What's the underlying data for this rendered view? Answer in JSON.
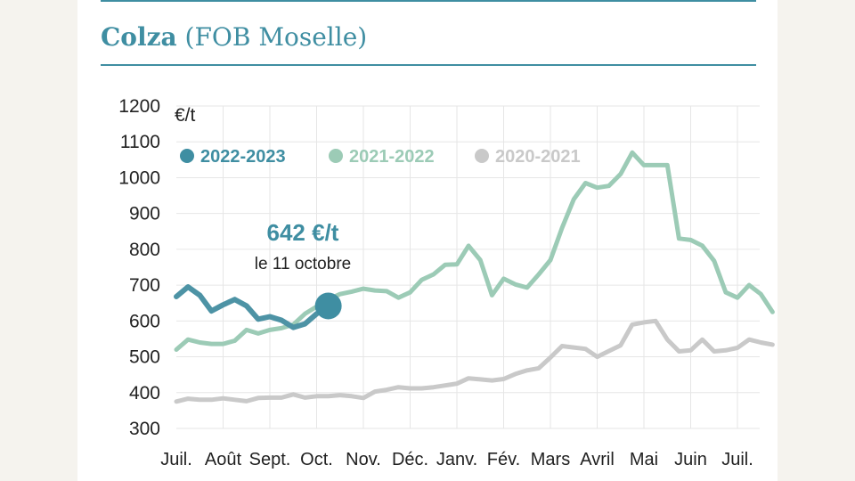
{
  "title": {
    "main": "Colza",
    "sub": "(FOB Moselle)"
  },
  "colors": {
    "s2022": "#4d93a5",
    "s2022_dot": "#3f8ea2",
    "s2021": "#9ccbb6",
    "s2020": "#c9c9c9",
    "grid": "#e6e6e6",
    "text": "#222222",
    "rule": "#3f8ea2"
  },
  "chart_data": {
    "type": "line",
    "title": "Colza (FOB Moselle)",
    "ylabel": "€/t",
    "ylim": [
      300,
      1200
    ],
    "yticks": [
      300,
      400,
      500,
      600,
      700,
      800,
      900,
      1000,
      1100,
      1200
    ],
    "xlabels": [
      "Juil.",
      "Août",
      "Sept.",
      "Oct.",
      "Nov.",
      "Déc.",
      "Janv.",
      "Fév.",
      "Mars",
      "Avril",
      "Mai",
      "Juin",
      "Juil."
    ],
    "xlim": [
      0,
      12.8
    ],
    "legend": "top-left",
    "series": [
      {
        "name": "2020-2021",
        "color": "#c9c9c9",
        "x": [
          0,
          0.25,
          0.5,
          0.75,
          1,
          1.25,
          1.5,
          1.75,
          2,
          2.25,
          2.5,
          2.75,
          3,
          3.25,
          3.5,
          3.75,
          4,
          4.25,
          4.5,
          4.75,
          5,
          5.25,
          5.5,
          5.75,
          6,
          6.25,
          6.5,
          6.75,
          7,
          7.25,
          7.5,
          7.75,
          8,
          8.25,
          8.5,
          8.75,
          9,
          9.25,
          9.5,
          9.75,
          10,
          10.25,
          10.5,
          10.75,
          11,
          11.25,
          11.5,
          11.75,
          12,
          12.25,
          12.5,
          12.75
        ],
        "values": [
          375,
          383,
          380,
          380,
          384,
          380,
          376,
          385,
          386,
          386,
          395,
          386,
          390,
          390,
          393,
          390,
          385,
          403,
          408,
          415,
          412,
          412,
          415,
          420,
          425,
          440,
          437,
          434,
          438,
          452,
          462,
          468,
          498,
          530,
          526,
          522,
          500,
          516,
          532,
          590,
          596,
          600,
          548,
          515,
          518,
          548,
          515,
          518,
          525,
          548,
          540,
          534
        ]
      },
      {
        "name": "2021-2022",
        "color": "#9ccbb6",
        "x": [
          0,
          0.25,
          0.5,
          0.75,
          1,
          1.25,
          1.5,
          1.75,
          2,
          2.25,
          2.5,
          2.75,
          3,
          3.25,
          3.5,
          3.75,
          4,
          4.25,
          4.5,
          4.75,
          5,
          5.25,
          5.5,
          5.75,
          6,
          6.25,
          6.5,
          6.75,
          7,
          7.25,
          7.5,
          7.75,
          8,
          8.25,
          8.5,
          8.75,
          9,
          9.25,
          9.5,
          9.75,
          10,
          10.25,
          10.5,
          10.75,
          11,
          11.25,
          11.5,
          11.75,
          12,
          12.25,
          12.5,
          12.75
        ],
        "values": [
          520,
          548,
          540,
          536,
          536,
          545,
          575,
          565,
          575,
          580,
          590,
          620,
          640,
          660,
          675,
          682,
          690,
          685,
          683,
          665,
          680,
          715,
          730,
          757,
          758,
          810,
          770,
          672,
          718,
          702,
          693,
          730,
          770,
          860,
          940,
          985,
          972,
          977,
          1010,
          1070,
          1035,
          1035,
          1035,
          830,
          826,
          810,
          768,
          680,
          665,
          700,
          675,
          625
        ]
      },
      {
        "name": "2022-2023",
        "color": "#4d93a5",
        "x": [
          0,
          0.25,
          0.5,
          0.75,
          1,
          1.25,
          1.5,
          1.75,
          2,
          2.25,
          2.5,
          2.75,
          3,
          3.25
        ],
        "values": [
          668,
          695,
          672,
          628,
          645,
          660,
          642,
          605,
          612,
          602,
          582,
          592,
          620,
          642
        ]
      }
    ],
    "annotation": {
      "value": "642 €/t",
      "date": "le 11 octobre",
      "x": 3.25,
      "y": 642
    }
  }
}
